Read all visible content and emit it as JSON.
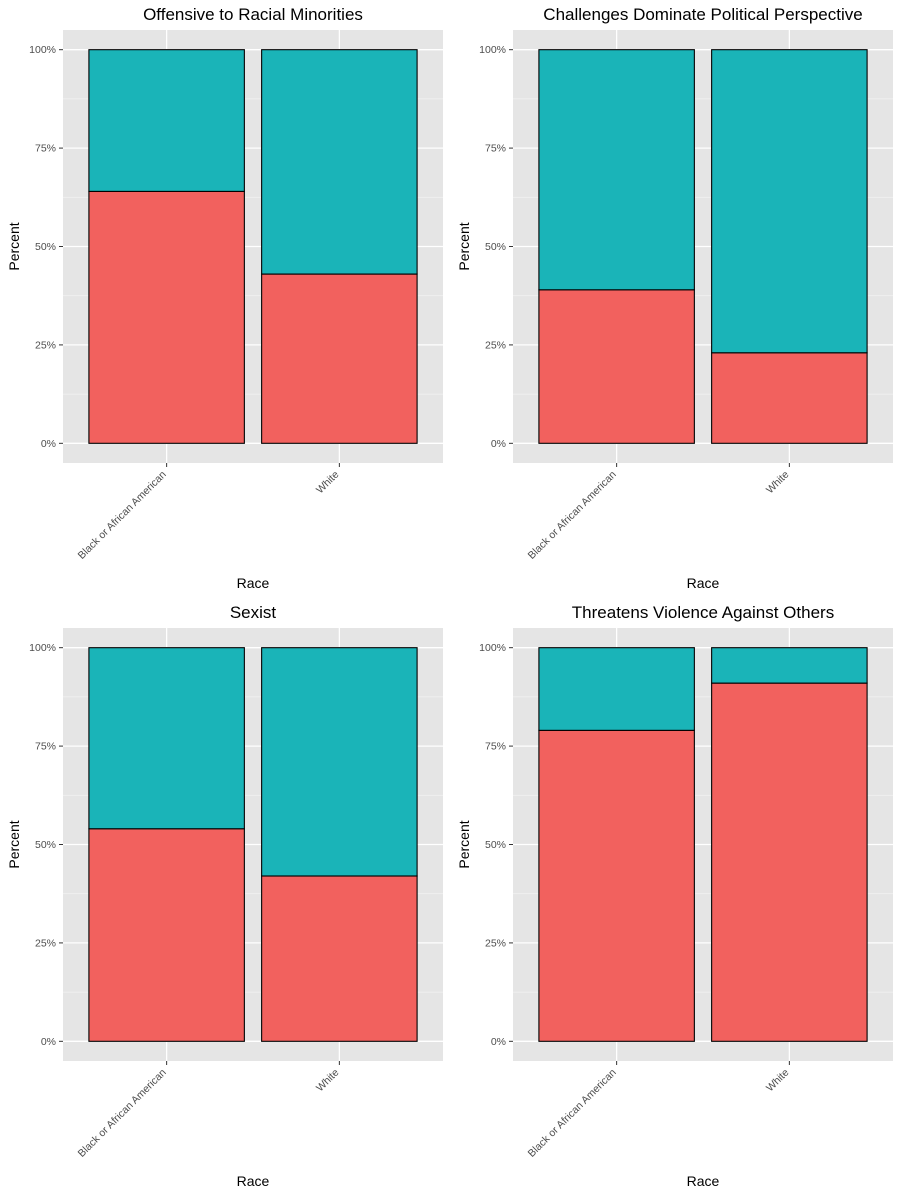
{
  "colors": {
    "panel_background": "#e5e5e5",
    "grid_major": "#ffffff",
    "grid_minor": "#f2f2f2",
    "lower_segment": "#f2615e",
    "upper_segment": "#1ab4b8",
    "bar_outline": "#000000",
    "text": "#000000",
    "tick_text": "#4d4d4d"
  },
  "chart_data": [
    {
      "type": "bar",
      "stacked": "percent",
      "title": "Offensive to Racial Minorities",
      "xlabel": "Race",
      "ylabel": "Percent",
      "categories": [
        "Black or African American",
        "White"
      ],
      "ylim": [
        0,
        1
      ],
      "yticks": [
        0,
        0.25,
        0.5,
        0.75,
        1
      ],
      "ytick_labels": [
        "0%",
        "25%",
        "50%",
        "75%",
        "100%"
      ],
      "grid": true,
      "series": [
        {
          "values": [
            0.64,
            0.43
          ]
        },
        {
          "values": [
            0.36,
            0.57
          ]
        }
      ]
    },
    {
      "type": "bar",
      "stacked": "percent",
      "title": "Challenges Dominate Political Perspective",
      "xlabel": "Race",
      "ylabel": "Percent",
      "categories": [
        "Black or African American",
        "White"
      ],
      "ylim": [
        0,
        1
      ],
      "yticks": [
        0,
        0.25,
        0.5,
        0.75,
        1
      ],
      "ytick_labels": [
        "0%",
        "25%",
        "50%",
        "75%",
        "100%"
      ],
      "grid": true,
      "series": [
        {
          "values": [
            0.39,
            0.23
          ]
        },
        {
          "values": [
            0.61,
            0.77
          ]
        }
      ]
    },
    {
      "type": "bar",
      "stacked": "percent",
      "title": "Sexist",
      "xlabel": "Race",
      "ylabel": "Percent",
      "categories": [
        "Black or African American",
        "White"
      ],
      "ylim": [
        0,
        1
      ],
      "yticks": [
        0,
        0.25,
        0.5,
        0.75,
        1
      ],
      "ytick_labels": [
        "0%",
        "25%",
        "50%",
        "75%",
        "100%"
      ],
      "grid": true,
      "series": [
        {
          "values": [
            0.54,
            0.42
          ]
        },
        {
          "values": [
            0.46,
            0.58
          ]
        }
      ]
    },
    {
      "type": "bar",
      "stacked": "percent",
      "title": "Threatens Violence Against Others",
      "xlabel": "Race",
      "ylabel": "Percent",
      "categories": [
        "Black or African American",
        "White"
      ],
      "ylim": [
        0,
        1
      ],
      "yticks": [
        0,
        0.25,
        0.5,
        0.75,
        1
      ],
      "ytick_labels": [
        "0%",
        "25%",
        "50%",
        "75%",
        "100%"
      ],
      "grid": true,
      "series": [
        {
          "values": [
            0.79,
            0.91
          ]
        },
        {
          "values": [
            0.21,
            0.09
          ]
        }
      ]
    }
  ]
}
